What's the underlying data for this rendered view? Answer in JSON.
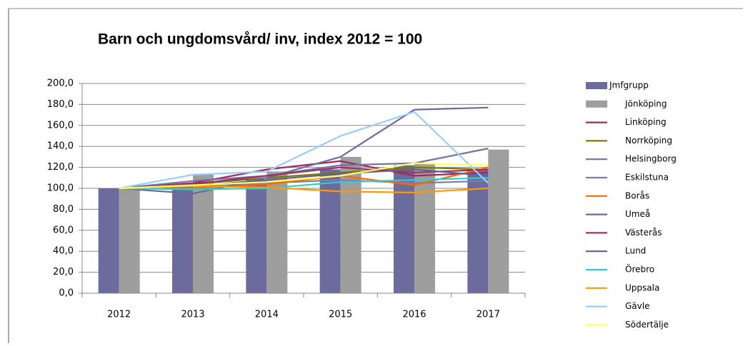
{
  "chart_data": {
    "type": "bar",
    "title": "Barn och ungdomsvård/ inv, index 2012 = 100",
    "categories": [
      "2012",
      "2013",
      "2014",
      "2015",
      "2016",
      "2017"
    ],
    "ylim": [
      0,
      200
    ],
    "yticks": [
      {
        "value": 0,
        "label": "0,0"
      },
      {
        "value": 20,
        "label": "20,0"
      },
      {
        "value": 40,
        "label": "40,0"
      },
      {
        "value": 60,
        "label": "60,0"
      },
      {
        "value": 80,
        "label": "80,0"
      },
      {
        "value": 100,
        "label": "100,0"
      },
      {
        "value": 120,
        "label": "120,0"
      },
      {
        "value": 140,
        "label": "140,0"
      },
      {
        "value": 160,
        "label": "160,0"
      },
      {
        "value": 180,
        "label": "180,0"
      },
      {
        "value": 200,
        "label": "200,0"
      }
    ],
    "grid": true,
    "legend": "right",
    "series": [
      {
        "name": "Jmfgrupp",
        "type": "bar",
        "color": "#6b6b9e",
        "values": [
          100,
          102,
          108,
          118,
          122,
          118
        ]
      },
      {
        "name": "Jönköping",
        "type": "bar",
        "color": "#9e9e9e",
        "values": [
          100,
          113,
          116,
          130,
          124,
          137
        ]
      },
      {
        "name": "Linköping",
        "type": "line",
        "color": "#a0285a",
        "values": [
          100,
          105,
          118,
          126,
          112,
          115
        ]
      },
      {
        "name": "Norrköping",
        "type": "line",
        "color": "#7a7a00",
        "values": [
          100,
          104,
          110,
          115,
          120,
          118
        ]
      },
      {
        "name": "Helsingborg",
        "type": "line",
        "color": "#7272a6",
        "values": [
          100,
          107,
          112,
          122,
          124,
          138
        ]
      },
      {
        "name": "Eskilstuna",
        "type": "line",
        "color": "#7c7cae",
        "values": [
          100,
          102,
          105,
          108,
          105,
          107
        ]
      },
      {
        "name": "Borås",
        "type": "line",
        "color": "#ff6600",
        "values": [
          100,
          100,
          104,
          112,
          103,
          120
        ]
      },
      {
        "name": "Umeå",
        "type": "line",
        "color": "#6a6aa0",
        "values": [
          100,
          95,
          110,
          130,
          175,
          177
        ]
      },
      {
        "name": "Västerås",
        "type": "line",
        "color": "#a03060",
        "values": [
          100,
          104,
          112,
          120,
          115,
          118
        ]
      },
      {
        "name": "Lund",
        "type": "line",
        "color": "#6060a0",
        "values": [
          100,
          102,
          108,
          114,
          118,
          112
        ]
      },
      {
        "name": "Örebro",
        "type": "line",
        "color": "#33cccc",
        "values": [
          100,
          99,
          100,
          106,
          108,
          110
        ]
      },
      {
        "name": "Uppsala",
        "type": "line",
        "color": "#ff9900",
        "values": [
          100,
          102,
          101,
          97,
          96,
          100
        ]
      },
      {
        "name": "Gävle",
        "type": "line",
        "color": "#99ccff",
        "values": [
          100,
          113,
          116,
          150,
          173,
          105
        ]
      },
      {
        "name": "Södertälje",
        "type": "line",
        "color": "#ffff66",
        "values": [
          100,
          103,
          106,
          112,
          124,
          122
        ]
      }
    ]
  }
}
